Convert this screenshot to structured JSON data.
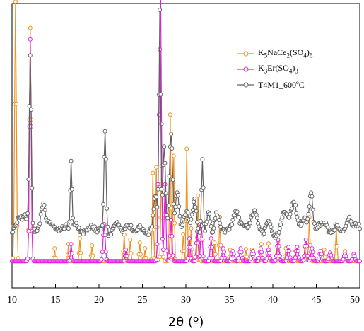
{
  "chart_data": {
    "type": "line",
    "title": "",
    "xlabel": "2θ (º)",
    "ylabel": "",
    "xlim": [
      10,
      50
    ],
    "ylim": [
      0,
      100
    ],
    "x_ticks": [
      "10",
      "15",
      "20",
      "25",
      "30",
      "35",
      "40",
      "45",
      "50"
    ],
    "y_ticks_shown": false,
    "grid": false,
    "legend_position": "top-right",
    "legend": [
      {
        "html": "K<sub>5</sub>NaCe<sub>2</sub>(SO<sub>4</sub>)<sub>6</sub>",
        "color": "#f0901e"
      },
      {
        "html": "K<sub>3</sub>Er(SO<sub>4</sub>)<sub>3</sub>",
        "color": "#e020e0"
      },
      {
        "html": "T4M1_600ºC",
        "color": "#606060"
      }
    ],
    "series": [
      {
        "color": "#f0901e",
        "baseline": 9.4,
        "peaks": [
          [
            10.4,
            91.3,
            0.1
          ],
          [
            12.1,
            82.0,
            0.1
          ],
          [
            14.9,
            4.5,
            0.06
          ],
          [
            16.5,
            6.0,
            0.07
          ],
          [
            17.8,
            8.0,
            0.07
          ],
          [
            19.2,
            5.5,
            0.07
          ],
          [
            22.9,
            9.3,
            0.07
          ],
          [
            23.6,
            7.5,
            0.07
          ],
          [
            24.7,
            6.5,
            0.07
          ],
          [
            25.3,
            4.5,
            0.06
          ],
          [
            26.2,
            31.0,
            0.07
          ],
          [
            26.6,
            33.0,
            0.07
          ],
          [
            27.2,
            33.5,
            0.08
          ],
          [
            28.2,
            51.5,
            0.07
          ],
          [
            28.6,
            37.0,
            0.07
          ],
          [
            29.7,
            9.5,
            0.07
          ],
          [
            30.1,
            39.5,
            0.07
          ],
          [
            30.6,
            11.5,
            0.07
          ],
          [
            31.4,
            23.0,
            0.07
          ],
          [
            33.3,
            6.5,
            0.07
          ],
          [
            33.9,
            15.5,
            0.07
          ],
          [
            35.1,
            4.0,
            0.07
          ],
          [
            36.9,
            4.2,
            0.07
          ],
          [
            37.6,
            4.0,
            0.07
          ],
          [
            38.7,
            6.0,
            0.07
          ],
          [
            39.5,
            6.2,
            0.07
          ],
          [
            40.6,
            7.0,
            0.07
          ],
          [
            41.5,
            4.5,
            0.07
          ],
          [
            42.6,
            3.5,
            0.07
          ],
          [
            43.7,
            5.0,
            0.07
          ],
          [
            44.2,
            15.5,
            0.07
          ],
          [
            45.9,
            4.0,
            0.07
          ],
          [
            47.3,
            11.5,
            0.08
          ],
          [
            48.3,
            3.5,
            0.07
          ]
        ]
      },
      {
        "color": "#e020e0",
        "baseline": 9.4,
        "peaks": [
          [
            12.1,
            78.0,
            0.1
          ],
          [
            16.8,
            6.0,
            0.08
          ],
          [
            20.6,
            13.0,
            0.12
          ],
          [
            23.1,
            4.0,
            0.08
          ],
          [
            26.9,
            44.0,
            0.1
          ],
          [
            27.1,
            88.5,
            0.09
          ],
          [
            27.6,
            27.0,
            0.1
          ],
          [
            28.3,
            14.5,
            0.1
          ],
          [
            30.4,
            8.0,
            0.1
          ],
          [
            31.3,
            10.5,
            0.1
          ],
          [
            31.8,
            12.5,
            0.1
          ],
          [
            32.9,
            8.0,
            0.1
          ],
          [
            34.3,
            4.5,
            0.12
          ],
          [
            35.4,
            3.5,
            0.12
          ],
          [
            36.3,
            4.5,
            0.12
          ],
          [
            37.7,
            3.5,
            0.12
          ],
          [
            38.6,
            4.5,
            0.12
          ],
          [
            39.5,
            4.0,
            0.12
          ],
          [
            40.6,
            7.5,
            0.12
          ],
          [
            41.8,
            5.0,
            0.12
          ],
          [
            42.8,
            5.0,
            0.12
          ],
          [
            43.8,
            7.5,
            0.12
          ],
          [
            44.5,
            4.5,
            0.12
          ],
          [
            45.5,
            3.5,
            0.12
          ],
          [
            46.6,
            3.0,
            0.12
          ],
          [
            48.3,
            2.5,
            0.12
          ],
          [
            49.3,
            2.5,
            0.12
          ]
        ]
      },
      {
        "color": "#606060",
        "baseline": 20.3,
        "peaks": [
          [
            10.8,
            4.5,
            0.3
          ],
          [
            11.4,
            4.0,
            0.25
          ],
          [
            12.1,
            60.0,
            0.12
          ],
          [
            13.6,
            9.5,
            0.25
          ],
          [
            14.2,
            3.5,
            0.25
          ],
          [
            16.8,
            24.5,
            0.1
          ],
          [
            17.3,
            3.0,
            0.25
          ],
          [
            20.7,
            35.0,
            0.12
          ],
          [
            22.0,
            2.5,
            0.3
          ],
          [
            24.5,
            2.0,
            0.3
          ],
          [
            26.5,
            11.0,
            0.2
          ],
          [
            27.0,
            76.0,
            0.1
          ],
          [
            27.5,
            29.0,
            0.15
          ],
          [
            28.3,
            35.0,
            0.18
          ],
          [
            29.0,
            14.0,
            0.2
          ],
          [
            30.0,
            6.0,
            0.25
          ],
          [
            31.0,
            9.0,
            0.2
          ],
          [
            31.9,
            26.5,
            0.1
          ],
          [
            32.6,
            8.0,
            0.2
          ],
          [
            33.5,
            6.0,
            0.25
          ],
          [
            35.8,
            7.0,
            0.3
          ],
          [
            37.8,
            5.0,
            0.3
          ],
          [
            39.5,
            4.0,
            0.3
          ],
          [
            41.4,
            6.5,
            0.3
          ],
          [
            42.4,
            8.5,
            0.3
          ],
          [
            43.5,
            3.5,
            0.3
          ],
          [
            44.4,
            12.5,
            0.18
          ],
          [
            46.0,
            3.5,
            0.3
          ],
          [
            47.4,
            4.0,
            0.3
          ],
          [
            48.8,
            3.5,
            0.3
          ]
        ]
      }
    ]
  }
}
